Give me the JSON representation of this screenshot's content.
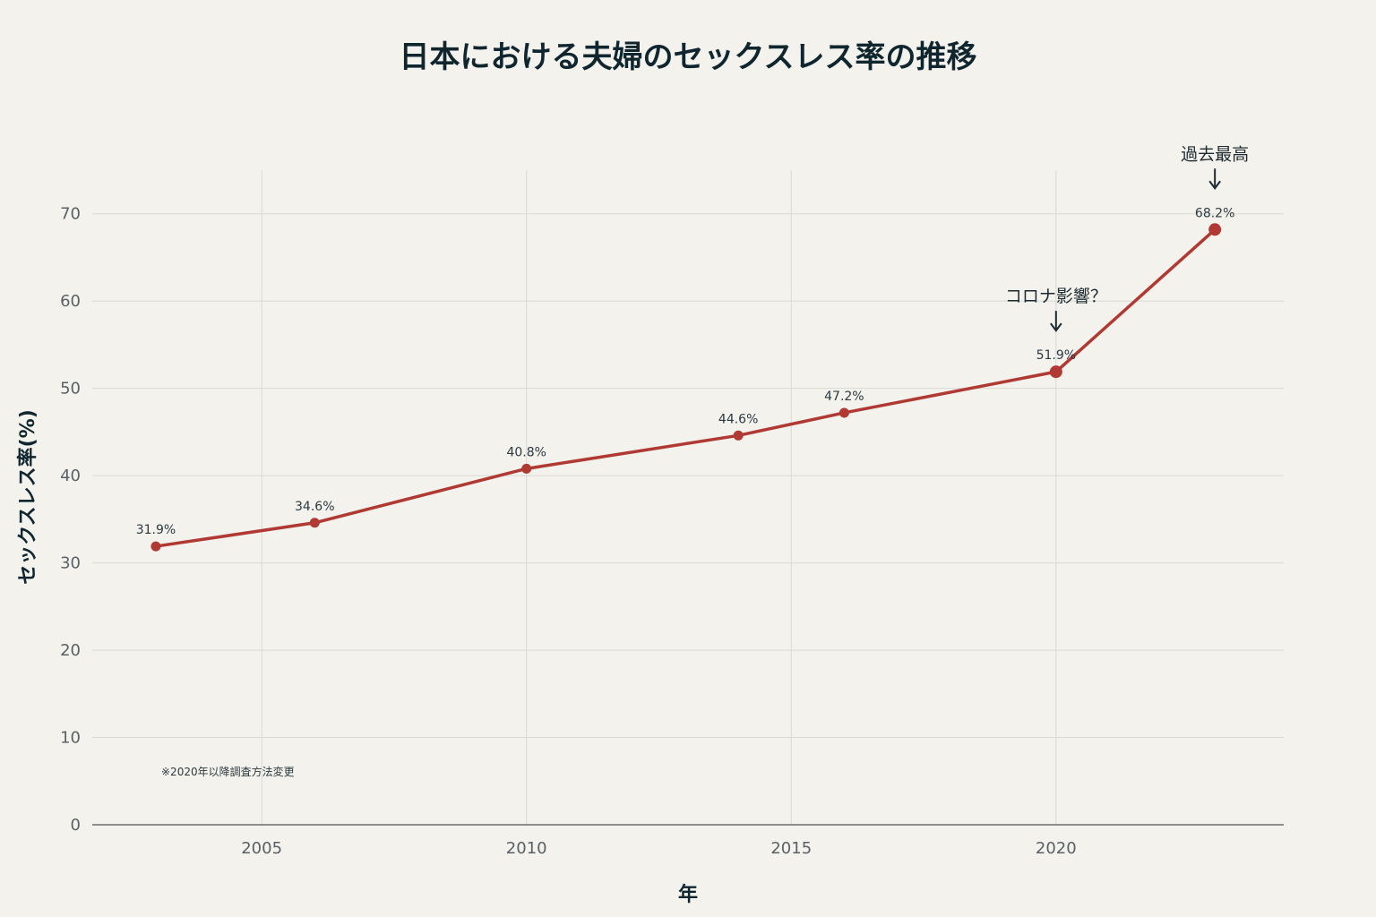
{
  "chart_data": {
    "type": "line",
    "title": "日本における夫婦のセックスレス率の推移",
    "xlabel": "年",
    "ylabel": "セックスレス率(%)",
    "x_ticks": [
      2005,
      2010,
      2015,
      2020
    ],
    "y_ticks": [
      0,
      10,
      20,
      30,
      40,
      50,
      60,
      70
    ],
    "xlim": [
      2001.8,
      2024.3
    ],
    "ylim": [
      0,
      75
    ],
    "grid": true,
    "series": [
      {
        "color": "#b03a33",
        "points": [
          {
            "x": 2003,
            "y": 31.9,
            "label": "31.9%"
          },
          {
            "x": 2006,
            "y": 34.6,
            "label": "34.6%"
          },
          {
            "x": 2010,
            "y": 40.8,
            "label": "40.8%"
          },
          {
            "x": 2014,
            "y": 44.6,
            "label": "44.6%"
          },
          {
            "x": 2016,
            "y": 47.2,
            "label": "47.2%"
          },
          {
            "x": 2020,
            "y": 51.9,
            "label": "51.9%"
          },
          {
            "x": 2023,
            "y": 68.2,
            "label": "68.2%"
          }
        ]
      }
    ],
    "annotations": [
      {
        "x": 2020,
        "y": 51.9,
        "text": "コロナ影響？"
      },
      {
        "x": 2023,
        "y": 68.2,
        "text": "過去最高"
      }
    ],
    "footnote": "※2020年以降調査方法変更"
  }
}
